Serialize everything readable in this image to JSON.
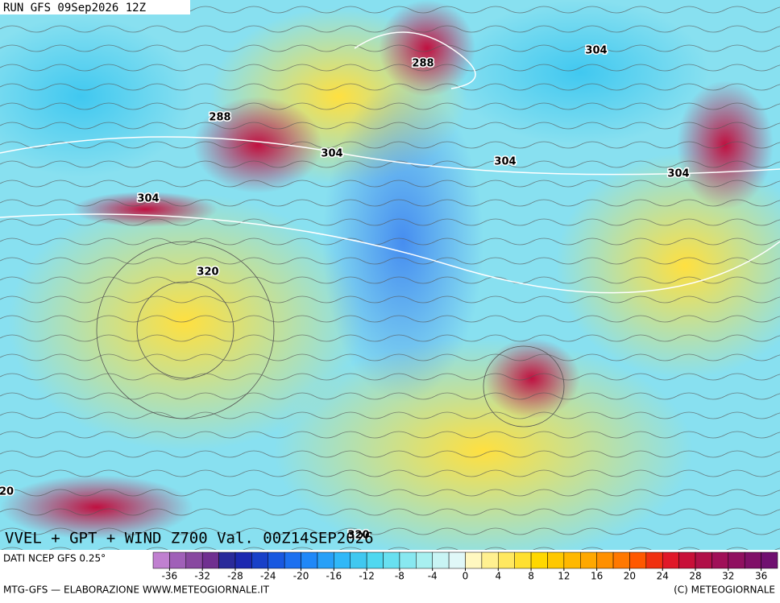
{
  "header": {
    "run": "RUN GFS 09Sep2026 12Z"
  },
  "map": {
    "contour_labels": [
      "288",
      "288",
      "304",
      "304",
      "304",
      "304",
      "304",
      "320",
      "20",
      "320"
    ]
  },
  "footer": {
    "title": "VVEL + GPT + WIND Z700 Val. 00Z14SEP2026",
    "source": "DATI NCEP GFS 0.25°",
    "credit": "MTG-GFS — ELABORAZIONE WWW.METEOGIORNALE.IT",
    "copyright": "(C) METEOGIORNALE"
  },
  "colorbar": {
    "clim": [
      -38,
      38
    ],
    "ticks": [
      -36,
      -32,
      -28,
      -24,
      -20,
      -16,
      -12,
      -8,
      -4,
      0,
      4,
      8,
      12,
      16,
      20,
      24,
      28,
      32,
      36
    ],
    "colors": [
      "#c080d0",
      "#a060b8",
      "#8848a0",
      "#703090",
      "#2a2a9a",
      "#1c28b0",
      "#1840c8",
      "#1858e0",
      "#1c70f0",
      "#2088f8",
      "#28a0f8",
      "#30b8f8",
      "#40c8f0",
      "#50d8f0",
      "#68e0f0",
      "#88e8f0",
      "#a8f0f0",
      "#c8f4f4",
      "#e0f8f8",
      "#fff8c0",
      "#fff090",
      "#ffe860",
      "#ffe030",
      "#ffd800",
      "#ffc800",
      "#ffb800",
      "#ffa800",
      "#ff9000",
      "#ff7800",
      "#ff5800",
      "#f03010",
      "#e01828",
      "#c81038",
      "#b01048",
      "#a01058",
      "#901060",
      "#801068",
      "#701070"
    ]
  }
}
